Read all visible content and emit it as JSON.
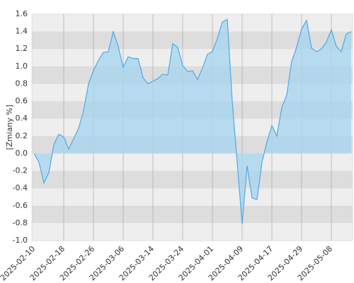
{
  "chart_data": {
    "type": "area",
    "y_label": "[Zmiany %]",
    "categories": [
      "2025-02-10",
      null,
      null,
      null,
      null,
      null,
      "2025-02-18",
      null,
      null,
      null,
      null,
      null,
      "2025-02-26",
      null,
      null,
      null,
      null,
      null,
      "2025-03-06",
      null,
      null,
      null,
      null,
      null,
      "2025-03-14",
      null,
      null,
      null,
      null,
      null,
      "2025-03-24",
      null,
      null,
      null,
      null,
      null,
      "2025-04-01",
      null,
      null,
      null,
      null,
      null,
      "2025-04-09",
      null,
      null,
      null,
      null,
      null,
      "2025-04-17",
      null,
      null,
      null,
      null,
      null,
      "2025-04-29",
      null,
      null,
      null,
      null,
      null,
      "2025-05-08",
      null,
      null,
      null,
      null
    ],
    "values": [
      0,
      -0.1,
      -0.34,
      -0.22,
      0.1,
      0.22,
      0.19,
      0.05,
      0.17,
      0.29,
      0.49,
      0.8,
      0.95,
      1.07,
      1.16,
      1.17,
      1.4,
      1.23,
      0.99,
      1.11,
      1.09,
      1.09,
      0.87,
      0.8,
      0.83,
      0.86,
      0.91,
      0.9,
      1.26,
      1.22,
      1.01,
      0.94,
      0.95,
      0.85,
      0.98,
      1.14,
      1.17,
      1.32,
      1.51,
      1.54,
      0.6,
      -0.1,
      -0.81,
      -0.14,
      -0.51,
      -0.53,
      -0.1,
      0.13,
      0.32,
      0.2,
      0.53,
      0.67,
      1.06,
      1.22,
      1.43,
      1.53,
      1.21,
      1.17,
      1.2,
      1.28,
      1.42,
      1.23,
      1.17,
      1.37,
      1.4
    ],
    "color": "#4ea8e8",
    "fill": "#a9d6ee",
    "ylim": [
      -1,
      1.6
    ],
    "yticks": [
      {
        "value": -1,
        "label": "-1.0"
      },
      -0.8,
      -0.6,
      -0.4,
      -0.2,
      {
        "value": 0,
        "label": "0.0"
      },
      0.2,
      0.4,
      0.6,
      0.8,
      {
        "value": 1,
        "label": "1.0"
      },
      1.2,
      1.4,
      1.6
    ],
    "grid": true
  }
}
